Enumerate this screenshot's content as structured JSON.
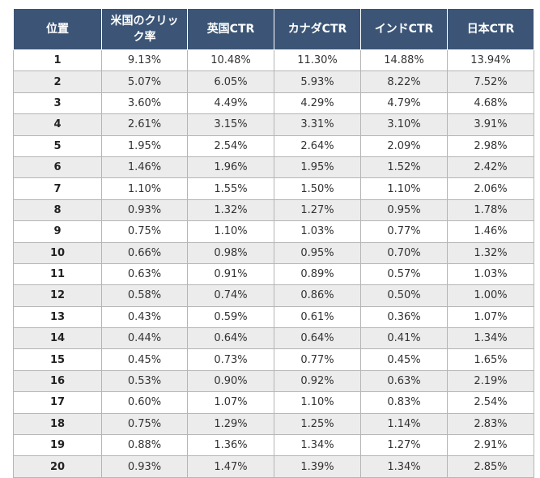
{
  "table": {
    "headers": [
      "位置",
      "米国のクリック率",
      "英国CTR",
      "カナダCTR",
      "インドCTR",
      "日本CTR"
    ],
    "rows": [
      [
        "1",
        "9.13%",
        "10.48%",
        "11.30%",
        "14.88%",
        "13.94%"
      ],
      [
        "2",
        "5.07%",
        "6.05%",
        "5.93%",
        "8.22%",
        "7.52%"
      ],
      [
        "3",
        "3.60%",
        "4.49%",
        "4.29%",
        "4.79%",
        "4.68%"
      ],
      [
        "4",
        "2.61%",
        "3.15%",
        "3.31%",
        "3.10%",
        "3.91%"
      ],
      [
        "5",
        "1.95%",
        "2.54%",
        "2.64%",
        "2.09%",
        "2.98%"
      ],
      [
        "6",
        "1.46%",
        "1.96%",
        "1.95%",
        "1.52%",
        "2.42%"
      ],
      [
        "7",
        "1.10%",
        "1.55%",
        "1.50%",
        "1.10%",
        "2.06%"
      ],
      [
        "8",
        "0.93%",
        "1.32%",
        "1.27%",
        "0.95%",
        "1.78%"
      ],
      [
        "9",
        "0.75%",
        "1.10%",
        "1.03%",
        "0.77%",
        "1.46%"
      ],
      [
        "10",
        "0.66%",
        "0.98%",
        "0.95%",
        "0.70%",
        "1.32%"
      ],
      [
        "11",
        "0.63%",
        "0.91%",
        "0.89%",
        "0.57%",
        "1.03%"
      ],
      [
        "12",
        "0.58%",
        "0.74%",
        "0.86%",
        "0.50%",
        "1.00%"
      ],
      [
        "13",
        "0.43%",
        "0.59%",
        "0.61%",
        "0.36%",
        "1.07%"
      ],
      [
        "14",
        "0.44%",
        "0.64%",
        "0.64%",
        "0.41%",
        "1.34%"
      ],
      [
        "15",
        "0.45%",
        "0.73%",
        "0.77%",
        "0.45%",
        "1.65%"
      ],
      [
        "16",
        "0.53%",
        "0.90%",
        "0.92%",
        "0.63%",
        "2.19%"
      ],
      [
        "17",
        "0.60%",
        "1.07%",
        "1.10%",
        "0.83%",
        "2.54%"
      ],
      [
        "18",
        "0.75%",
        "1.29%",
        "1.25%",
        "1.14%",
        "2.83%"
      ],
      [
        "19",
        "0.88%",
        "1.36%",
        "1.34%",
        "1.27%",
        "2.91%"
      ],
      [
        "20",
        "0.93%",
        "1.47%",
        "1.39%",
        "1.34%",
        "2.85%"
      ]
    ]
  },
  "colors": {
    "header_bg": "#3c5576",
    "header_text": "#ffffff",
    "stripe_bg": "#ececec",
    "border": "#b5b5b5"
  }
}
